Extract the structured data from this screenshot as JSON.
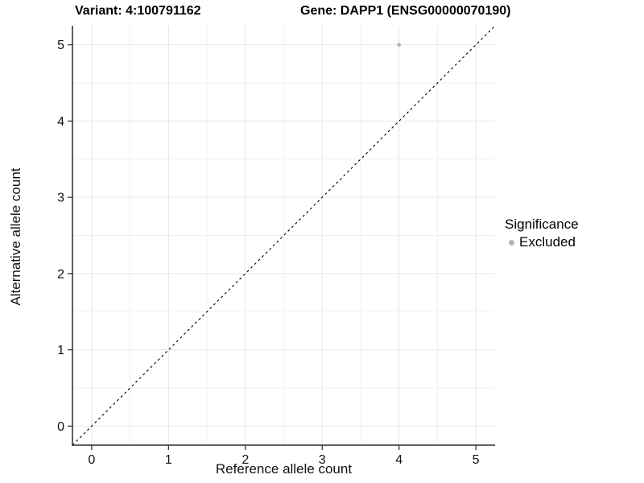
{
  "titles": {
    "variant": "Variant: 4:100791162",
    "gene": "Gene: DAPP1 (ENSG00000070190)"
  },
  "legend": {
    "title": "Significance",
    "entries": [
      {
        "label": "Excluded",
        "color": "#b4b4b4"
      }
    ]
  },
  "chart_data": {
    "type": "scatter",
    "title": "Variant: 4:100791162 / Gene: DAPP1 (ENSG00000070190)",
    "xlabel": "Reference allele count",
    "ylabel": "Alternative allele count",
    "xlim": [
      -0.25,
      5.25
    ],
    "ylim": [
      -0.25,
      5.25
    ],
    "x_ticks": [
      0,
      1,
      2,
      3,
      4,
      5
    ],
    "y_ticks": [
      0,
      1,
      2,
      3,
      4,
      5
    ],
    "minor_ticks": [
      0.5,
      1.5,
      2.5,
      3.5,
      4.5
    ],
    "grid": "major+minor",
    "legend_position": "right",
    "series": [
      {
        "name": "Excluded",
        "color": "#b4b4b4",
        "points": [
          {
            "x": 4,
            "y": 5
          }
        ]
      }
    ],
    "identity_line": {
      "style": "dashed",
      "equation": "y = x",
      "color": "#000000"
    }
  },
  "colors": {
    "background": "#ffffff",
    "axis": "#2b2b2b",
    "tick_label": "#111111",
    "grid_major": "#e6e6e6",
    "grid_minor": "#f1f1f1",
    "point": "#b4b4b4"
  }
}
